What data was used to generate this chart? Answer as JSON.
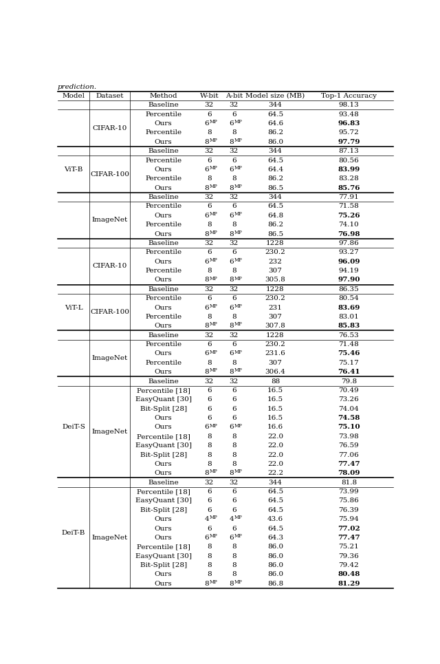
{
  "caption": "prediction.",
  "headers": [
    "Model",
    "Dataset",
    "Method",
    "W-bit",
    "A-bit",
    "Model size (MB)",
    "Top-1 Accuracy"
  ],
  "rows": [
    [
      "ViT-B",
      "CIFAR-10",
      "Baseline",
      "32",
      "32",
      "344",
      "98.13",
      false
    ],
    [
      "ViT-B",
      "CIFAR-10",
      "Percentile",
      "6",
      "6",
      "64.5",
      "93.48",
      false
    ],
    [
      "ViT-B",
      "CIFAR-10",
      "Ours",
      "6|MP",
      "6|MP",
      "64.6",
      "96.83",
      true
    ],
    [
      "ViT-B",
      "CIFAR-10",
      "Percentile",
      "8",
      "8",
      "86.2",
      "95.72",
      false
    ],
    [
      "ViT-B",
      "CIFAR-10",
      "Ours",
      "8|MP",
      "8|MP",
      "86.0",
      "97.79",
      true
    ],
    [
      "ViT-B",
      "CIFAR-100",
      "Baseline",
      "32",
      "32",
      "344",
      "87.13",
      false
    ],
    [
      "ViT-B",
      "CIFAR-100",
      "Percentile",
      "6",
      "6",
      "64.5",
      "80.56",
      false
    ],
    [
      "ViT-B",
      "CIFAR-100",
      "Ours",
      "6|MP",
      "6|MP",
      "64.4",
      "83.99",
      true
    ],
    [
      "ViT-B",
      "CIFAR-100",
      "Percentile",
      "8",
      "8",
      "86.2",
      "83.28",
      false
    ],
    [
      "ViT-B",
      "CIFAR-100",
      "Ours",
      "8|MP",
      "8|MP",
      "86.5",
      "85.76",
      true
    ],
    [
      "ViT-B",
      "ImageNet",
      "Baseline",
      "32",
      "32",
      "344",
      "77.91",
      false
    ],
    [
      "ViT-B",
      "ImageNet",
      "Percentile",
      "6",
      "6",
      "64.5",
      "71.58",
      false
    ],
    [
      "ViT-B",
      "ImageNet",
      "Ours",
      "6|MP",
      "6|MP",
      "64.8",
      "75.26",
      true
    ],
    [
      "ViT-B",
      "ImageNet",
      "Percentile",
      "8",
      "8",
      "86.2",
      "74.10",
      false
    ],
    [
      "ViT-B",
      "ImageNet",
      "Ours",
      "8|MP",
      "8|MP",
      "86.5",
      "76.98",
      true
    ],
    [
      "ViT-L",
      "CIFAR-10",
      "Baseline",
      "32",
      "32",
      "1228",
      "97.86",
      false
    ],
    [
      "ViT-L",
      "CIFAR-10",
      "Percentile",
      "6",
      "6",
      "230.2",
      "93.27",
      false
    ],
    [
      "ViT-L",
      "CIFAR-10",
      "Ours",
      "6|MP",
      "6|MP",
      "232",
      "96.09",
      true
    ],
    [
      "ViT-L",
      "CIFAR-10",
      "Percentile",
      "8",
      "8",
      "307",
      "94.19",
      false
    ],
    [
      "ViT-L",
      "CIFAR-10",
      "Ours",
      "8|MP",
      "8|MP",
      "305.8",
      "97.90",
      true
    ],
    [
      "ViT-L",
      "CIFAR-100",
      "Baseline",
      "32",
      "32",
      "1228",
      "86.35",
      false
    ],
    [
      "ViT-L",
      "CIFAR-100",
      "Percentile",
      "6",
      "6",
      "230.2",
      "80.54",
      false
    ],
    [
      "ViT-L",
      "CIFAR-100",
      "Ours",
      "6|MP",
      "6|MP",
      "231",
      "83.69",
      true
    ],
    [
      "ViT-L",
      "CIFAR-100",
      "Percentile",
      "8",
      "8",
      "307",
      "83.01",
      false
    ],
    [
      "ViT-L",
      "CIFAR-100",
      "Ours",
      "8|MP",
      "8|MP",
      "307.8",
      "85.83",
      true
    ],
    [
      "ViT-L",
      "ImageNet",
      "Baseline",
      "32",
      "32",
      "1228",
      "76.53",
      false
    ],
    [
      "ViT-L",
      "ImageNet",
      "Percentile",
      "6",
      "6",
      "230.2",
      "71.48",
      false
    ],
    [
      "ViT-L",
      "ImageNet",
      "Ours",
      "6|MP",
      "6|MP",
      "231.6",
      "75.46",
      true
    ],
    [
      "ViT-L",
      "ImageNet",
      "Percentile",
      "8",
      "8",
      "307",
      "75.17",
      false
    ],
    [
      "ViT-L",
      "ImageNet",
      "Ours",
      "8|MP",
      "8|MP",
      "306.4",
      "76.41",
      true
    ],
    [
      "DeiT-S",
      "ImageNet",
      "Baseline",
      "32",
      "32",
      "88",
      "79.8",
      false
    ],
    [
      "DeiT-S",
      "ImageNet",
      "Percentile [18]",
      "6",
      "6",
      "16.5",
      "70.49",
      false
    ],
    [
      "DeiT-S",
      "ImageNet",
      "EasyQuant [30]",
      "6",
      "6",
      "16.5",
      "73.26",
      false
    ],
    [
      "DeiT-S",
      "ImageNet",
      "Bit-Split [28]",
      "6",
      "6",
      "16.5",
      "74.04",
      false
    ],
    [
      "DeiT-S",
      "ImageNet",
      "Ours",
      "6",
      "6",
      "16.5",
      "74.58",
      true
    ],
    [
      "DeiT-S",
      "ImageNet",
      "Ours",
      "6|MP",
      "6|MP",
      "16.6",
      "75.10",
      true
    ],
    [
      "DeiT-S",
      "ImageNet",
      "Percentile [18]",
      "8",
      "8",
      "22.0",
      "73.98",
      false
    ],
    [
      "DeiT-S",
      "ImageNet",
      "EasyQuant [30]",
      "8",
      "8",
      "22.0",
      "76.59",
      false
    ],
    [
      "DeiT-S",
      "ImageNet",
      "Bit-Split [28]",
      "8",
      "8",
      "22.0",
      "77.06",
      false
    ],
    [
      "DeiT-S",
      "ImageNet",
      "Ours",
      "8",
      "8",
      "22.0",
      "77.47",
      true
    ],
    [
      "DeiT-S",
      "ImageNet",
      "Ours",
      "8|MP",
      "8|MP",
      "22.2",
      "78.09",
      true
    ],
    [
      "DeiT-B",
      "ImageNet",
      "Baseline",
      "32",
      "32",
      "344",
      "81.8",
      false
    ],
    [
      "DeiT-B",
      "ImageNet",
      "Percentile [18]",
      "6",
      "6",
      "64.5",
      "73.99",
      false
    ],
    [
      "DeiT-B",
      "ImageNet",
      "EasyQuant [30]",
      "6",
      "6",
      "64.5",
      "75.86",
      false
    ],
    [
      "DeiT-B",
      "ImageNet",
      "Bit-Split [28]",
      "6",
      "6",
      "64.5",
      "76.39",
      false
    ],
    [
      "DeiT-B",
      "ImageNet",
      "Ours",
      "4|MP",
      "4|MP",
      "43.6",
      "75.94",
      false
    ],
    [
      "DeiT-B",
      "ImageNet",
      "Ours",
      "6",
      "6",
      "64.5",
      "77.02",
      true
    ],
    [
      "DeiT-B",
      "ImageNet",
      "Ours",
      "6|MP",
      "6|MP",
      "64.3",
      "77.47",
      true
    ],
    [
      "DeiT-B",
      "ImageNet",
      "Percentile [18]",
      "8",
      "8",
      "86.0",
      "75.21",
      false
    ],
    [
      "DeiT-B",
      "ImageNet",
      "EasyQuant [30]",
      "8",
      "8",
      "86.0",
      "79.36",
      false
    ],
    [
      "DeiT-B",
      "ImageNet",
      "Bit-Split [28]",
      "8",
      "8",
      "86.0",
      "79.42",
      false
    ],
    [
      "DeiT-B",
      "ImageNet",
      "Ours",
      "8",
      "8",
      "86.0",
      "80.48",
      true
    ],
    [
      "DeiT-B",
      "ImageNet",
      "Ours",
      "8|MP",
      "8|MP",
      "86.8",
      "81.29",
      true
    ]
  ],
  "font_size": 7.5,
  "sup_font_size": 5.0,
  "background_color": "#ffffff"
}
